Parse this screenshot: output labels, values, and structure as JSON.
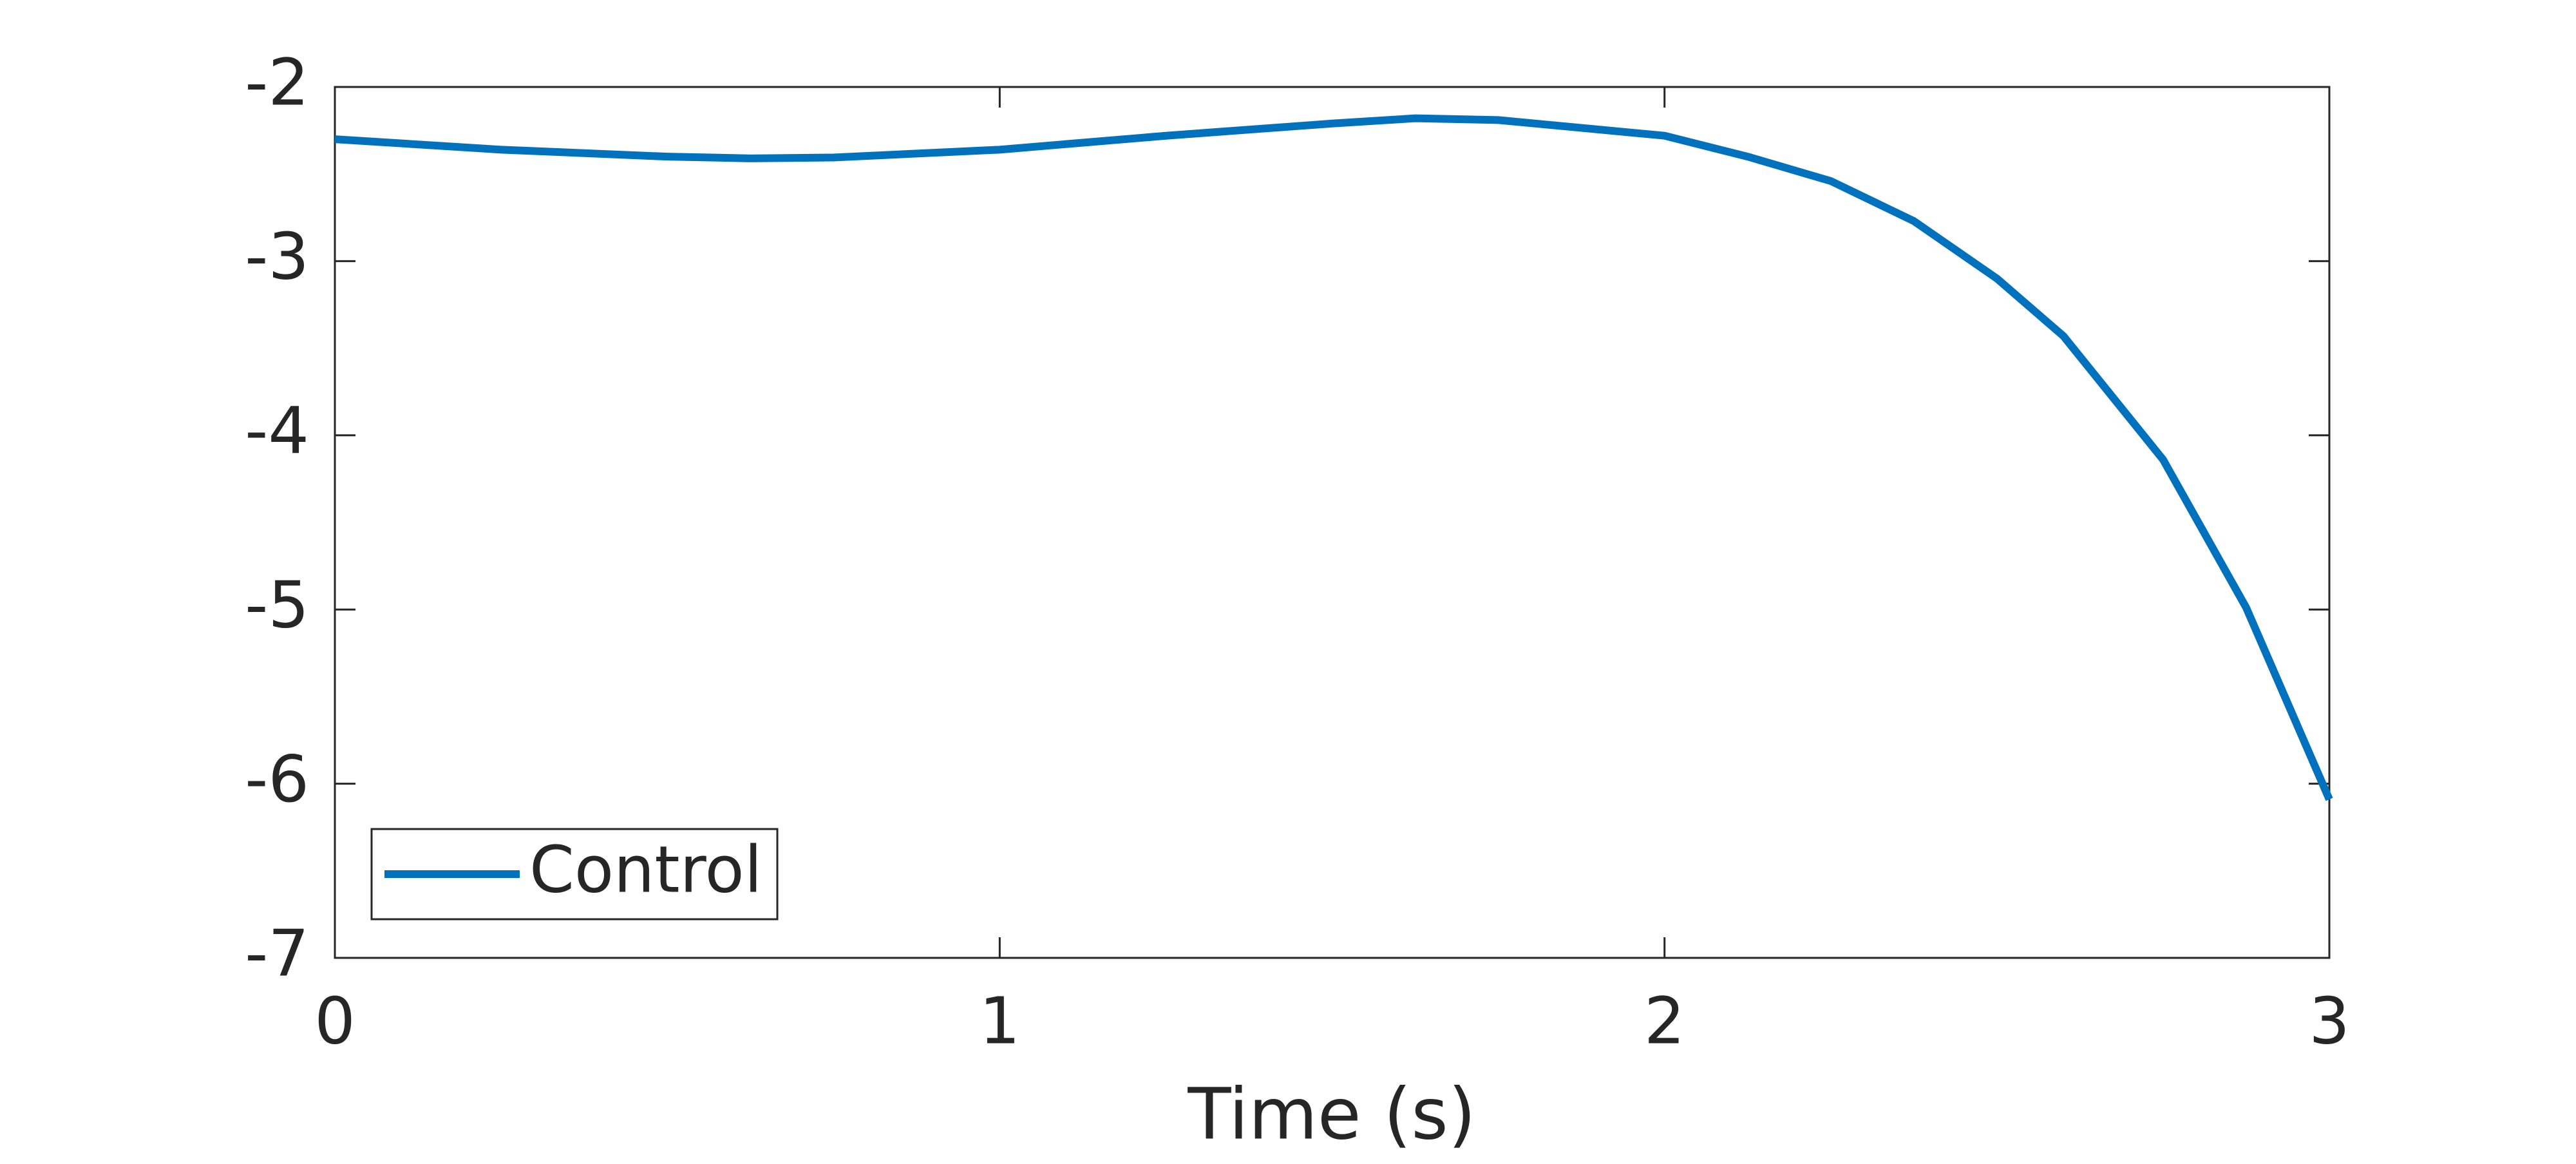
{
  "chart_data": {
    "type": "line",
    "xlabel": "Time (s)",
    "x": [
      0,
      0.25,
      0.5,
      0.625,
      0.75,
      1.0,
      1.25,
      1.5,
      1.625,
      1.75,
      2.0,
      2.125,
      2.25,
      2.375,
      2.5,
      2.6,
      2.75,
      2.875,
      3.0
    ],
    "series": [
      {
        "name": "Control",
        "color": "#0072bd",
        "values": [
          -2.3,
          -2.36,
          -2.4,
          -2.41,
          -2.405,
          -2.36,
          -2.28,
          -2.21,
          -2.18,
          -2.19,
          -2.28,
          -2.4,
          -2.54,
          -2.77,
          -3.1,
          -3.43,
          -4.14,
          -4.99,
          -6.09
        ]
      }
    ],
    "xlim": [
      0,
      3
    ],
    "xticks": [
      0,
      1,
      2,
      3
    ],
    "ylim": [
      -7,
      -2
    ],
    "yticks": [
      -7,
      -6,
      -5,
      -4,
      -3,
      -2
    ],
    "legend": "lower left",
    "grid": false
  }
}
